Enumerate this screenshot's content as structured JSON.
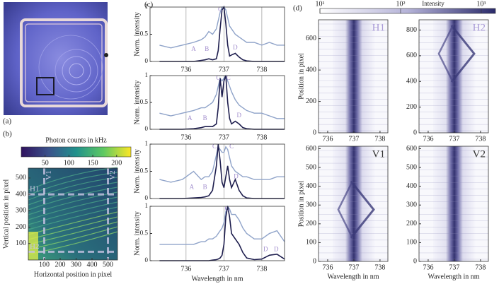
{
  "chart_data": [
    {
      "type": "photo",
      "panel_label": "(a)"
    },
    {
      "type": "map",
      "panel_label": "(b)",
      "colorbar_title": "Photon counts in kHz",
      "clim": [
        0,
        230
      ],
      "cticks": [
        50,
        100,
        150,
        200
      ],
      "xlabel": "Horizontal position in pixel",
      "ylabel": "Vertical position in pixel",
      "xlim": [
        0,
        560
      ],
      "ylim": [
        0,
        560
      ],
      "xticks": [
        100,
        200,
        300,
        400,
        500
      ],
      "yticks": [
        100,
        200,
        300,
        400,
        500
      ],
      "cuts": [
        {
          "label": "H1",
          "axis": "y",
          "value": 400
        },
        {
          "label": "H2",
          "axis": "y",
          "value": 50
        },
        {
          "label": "V1",
          "axis": "x",
          "value": 100
        },
        {
          "label": "V2",
          "axis": "x",
          "value": 500
        }
      ]
    },
    {
      "type": "line",
      "panel_label": "(c)",
      "ylabel": "Norm. intensity",
      "xlim": [
        735.05,
        738.6
      ],
      "ylim": [
        0,
        1
      ],
      "xticks": [
        736,
        737,
        738
      ],
      "yticks": [
        0,
        0.5,
        1
      ],
      "show_xtick_labels": true,
      "x": [
        735.3,
        735.6,
        735.9,
        736.2,
        736.4,
        736.5,
        736.6,
        736.7,
        736.8,
        736.85,
        736.9,
        736.95,
        737.0,
        737.05,
        737.1,
        737.15,
        737.2,
        737.3,
        737.4,
        737.5,
        737.6,
        737.8,
        738.0,
        738.2,
        738.4,
        738.6
      ],
      "series": [
        {
          "color": "#8fa3c9",
          "values": [
            0.3,
            0.25,
            0.3,
            0.35,
            0.4,
            0.45,
            0.55,
            0.5,
            0.6,
            0.75,
            0.9,
            1.0,
            1.0,
            0.95,
            0.8,
            0.65,
            0.6,
            0.5,
            0.45,
            0.4,
            0.35,
            0.35,
            0.3,
            0.35,
            0.3,
            0.3
          ]
        },
        {
          "color": "#1e1e4e",
          "values": [
            0,
            0,
            0,
            0,
            0.02,
            0.03,
            0.05,
            0.03,
            0.05,
            0.2,
            0.6,
            0.95,
            1.0,
            0.7,
            0.3,
            0.1,
            0.12,
            0.15,
            0.08,
            0.03,
            0.01,
            0,
            0,
            0,
            0,
            0
          ]
        }
      ],
      "annotations": [
        {
          "text": "A",
          "x": 736.2,
          "y": 0.22
        },
        {
          "text": "B",
          "x": 736.55,
          "y": 0.22
        },
        {
          "text": "C",
          "x": 736.9,
          "y": 0.95
        },
        {
          "text": "D",
          "x": 737.3,
          "y": 0.25
        }
      ]
    },
    {
      "type": "line",
      "ylabel": "Norm. intensity",
      "xlim": [
        735.05,
        738.6
      ],
      "ylim": [
        0,
        1
      ],
      "xticks": [
        736,
        737,
        738
      ],
      "yticks": [
        0,
        0.5,
        1
      ],
      "show_xtick_labels": true,
      "x": [
        735.3,
        735.6,
        735.9,
        736.2,
        736.4,
        736.5,
        736.6,
        736.7,
        736.8,
        736.85,
        736.9,
        736.95,
        737.0,
        737.05,
        737.1,
        737.15,
        737.2,
        737.3,
        737.4,
        737.5,
        737.6,
        737.8,
        738.0,
        738.2,
        738.4,
        738.6
      ],
      "series": [
        {
          "color": "#8fa3c9",
          "values": [
            0.3,
            0.25,
            0.3,
            0.35,
            0.4,
            0.4,
            0.45,
            0.5,
            0.65,
            0.8,
            0.95,
            0.9,
            0.95,
            1.0,
            0.9,
            0.8,
            0.7,
            0.55,
            0.45,
            0.4,
            0.35,
            0.3,
            0.3,
            0.25,
            0.2,
            0.2
          ]
        },
        {
          "color": "#1e1e4e",
          "values": [
            0,
            0,
            0,
            0.01,
            0.03,
            0.05,
            0.05,
            0.05,
            0.1,
            0.4,
            0.95,
            0.6,
            0.9,
            1.0,
            0.5,
            0.2,
            0.1,
            0.15,
            0.1,
            0.03,
            0.01,
            0,
            0,
            0,
            0,
            0
          ]
        }
      ],
      "annotations": [
        {
          "text": "A",
          "x": 736.1,
          "y": 0.2
        },
        {
          "text": "B",
          "x": 736.5,
          "y": 0.2
        },
        {
          "text": "C",
          "x": 736.85,
          "y": 0.95
        },
        {
          "text": "C",
          "x": 737.12,
          "y": 0.95
        },
        {
          "text": "D",
          "x": 737.4,
          "y": 0.25
        }
      ]
    },
    {
      "type": "line",
      "ylabel": "Norm. intensity",
      "xlim": [
        735.05,
        738.6
      ],
      "ylim": [
        0,
        1
      ],
      "xticks": [
        736,
        737,
        738
      ],
      "yticks": [
        0,
        0.5,
        1
      ],
      "show_xtick_labels": false,
      "x": [
        735.3,
        735.6,
        735.9,
        736.2,
        736.4,
        736.5,
        736.6,
        736.7,
        736.8,
        736.85,
        736.9,
        736.95,
        737.0,
        737.05,
        737.1,
        737.15,
        737.2,
        737.3,
        737.4,
        737.5,
        737.6,
        737.8,
        738.0,
        738.2,
        738.4,
        738.6
      ],
      "series": [
        {
          "color": "#8fa3c9",
          "values": [
            0.35,
            0.3,
            0.35,
            0.5,
            0.35,
            0.4,
            0.4,
            0.5,
            0.8,
            0.95,
            0.9,
            0.85,
            0.85,
            0.95,
            0.9,
            0.75,
            0.6,
            0.5,
            0.45,
            0.4,
            0.4,
            0.35,
            0.35,
            0.35,
            0.4,
            0.4
          ]
        },
        {
          "color": "#1e1e4e",
          "values": [
            0,
            0,
            0,
            0.01,
            0.02,
            0.03,
            0.05,
            0.15,
            0.6,
            1.0,
            0.7,
            0.3,
            0.2,
            0.4,
            0.6,
            0.35,
            0.2,
            0.35,
            0.15,
            0.05,
            0.01,
            0,
            0,
            0,
            0,
            0
          ]
        }
      ],
      "annotations": [
        {
          "text": "A",
          "x": 736.15,
          "y": 0.2
        },
        {
          "text": "B",
          "x": 736.5,
          "y": 0.2
        },
        {
          "text": "C",
          "x": 736.75,
          "y": 0.95
        },
        {
          "text": "C",
          "x": 737.2,
          "y": 0.95
        },
        {
          "text": "D",
          "x": 737.32,
          "y": 0.4
        }
      ]
    },
    {
      "type": "line",
      "ylabel": "Norm. intensity",
      "xlabel": "Wavelength in nm",
      "xlim": [
        735.05,
        738.6
      ],
      "ylim": [
        0,
        1
      ],
      "xticks": [
        736,
        737,
        738
      ],
      "yticks": [
        0,
        0.5,
        1
      ],
      "show_xtick_labels": true,
      "x": [
        735.3,
        735.6,
        735.9,
        736.2,
        736.4,
        736.5,
        736.6,
        736.7,
        736.8,
        736.85,
        736.9,
        736.95,
        737.0,
        737.05,
        737.1,
        737.15,
        737.2,
        737.3,
        737.4,
        737.5,
        737.6,
        737.8,
        738.0,
        738.2,
        738.4,
        738.6
      ],
      "series": [
        {
          "color": "#8fa3c9",
          "values": [
            0.3,
            0.3,
            0.3,
            0.3,
            0.35,
            0.35,
            0.4,
            0.4,
            0.45,
            0.5,
            0.55,
            0.6,
            0.7,
            0.9,
            1.0,
            0.95,
            0.85,
            0.85,
            0.75,
            0.6,
            0.5,
            0.4,
            0.4,
            0.5,
            0.55,
            0.35
          ]
        },
        {
          "color": "#1e1e4e",
          "values": [
            0,
            0,
            0,
            0,
            0,
            0,
            0,
            0.01,
            0.02,
            0.03,
            0.05,
            0.1,
            0.3,
            0.8,
            1.0,
            0.8,
            0.5,
            0.4,
            0.3,
            0.15,
            0.05,
            0.02,
            0.03,
            0.1,
            0.12,
            0.03
          ]
        }
      ],
      "annotations": [
        {
          "text": "C",
          "x": 737.08,
          "y": 0.95
        },
        {
          "text": "D",
          "x": 738.1,
          "y": 0.2
        },
        {
          "text": "D",
          "x": 738.38,
          "y": 0.2
        }
      ]
    },
    {
      "type": "colorbar",
      "panel_label": "(d)",
      "title": "Intensity",
      "log": true,
      "clim": [
        10,
        1500
      ],
      "ticks": [
        {
          "value": 10,
          "label": "10¹"
        },
        {
          "value": 100,
          "label": "10²"
        },
        {
          "value": 1000,
          "label": "10³"
        }
      ]
    },
    {
      "type": "heatmap",
      "label": "H1",
      "label_color": "#a99bd6",
      "ylabel": "Position in pixel",
      "xlim": [
        735.65,
        738.3
      ],
      "ylim": [
        0,
        720
      ],
      "xticks": [
        736,
        737,
        738
      ],
      "yticks": [
        0,
        200,
        400,
        600
      ]
    },
    {
      "type": "heatmap",
      "label": "H2",
      "label_color": "#a99bd6",
      "xlim": [
        735.65,
        738.3
      ],
      "ylim": [
        0,
        880
      ],
      "xticks": [
        736,
        737,
        738
      ],
      "yticks": [
        0,
        200,
        400,
        600,
        800
      ]
    },
    {
      "type": "heatmap",
      "label": "V1",
      "label_color": "#333333",
      "ylabel": "Position in pixel",
      "xlabel": "Wavelength in nm",
      "xlim": [
        735.65,
        738.3
      ],
      "ylim": [
        0,
        613
      ],
      "xticks": [
        736,
        737,
        738
      ],
      "yticks": [
        0,
        100,
        200,
        300,
        400,
        500,
        600
      ]
    },
    {
      "type": "heatmap",
      "label": "V2",
      "label_color": "#333333",
      "xlabel": "Wavelength in nm",
      "xlim": [
        735.65,
        738.3
      ],
      "ylim": [
        0,
        613
      ],
      "xticks": [
        736,
        737,
        738
      ],
      "yticks": [
        0,
        100,
        200,
        300,
        400,
        500,
        600
      ]
    }
  ]
}
